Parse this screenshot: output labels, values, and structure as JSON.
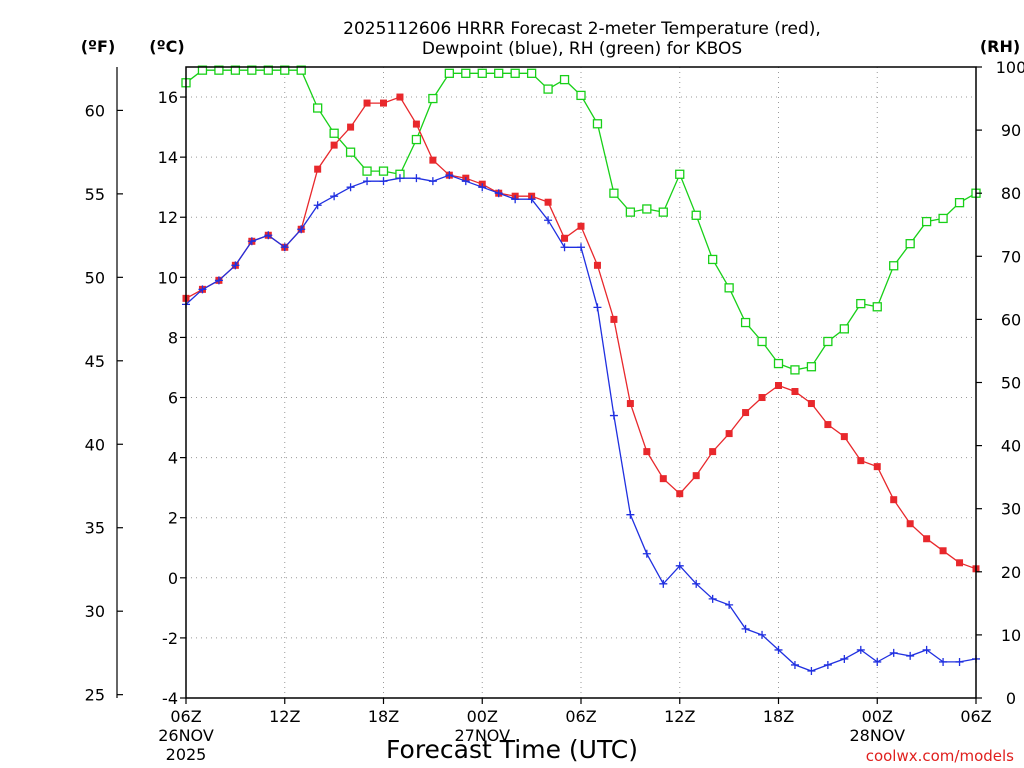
{
  "chart_data": {
    "type": "line",
    "title_line1": "2025112606 HRRR Forecast 2-meter Temperature (red),",
    "title_line2": "Dewpoint (blue), RH (green) for KBOS",
    "xlabel": "Forecast Time (UTC)",
    "credit": "coolwx.com/models",
    "unit_f": "(ºF)",
    "unit_c": "(ºC)",
    "unit_rh": "(RH)",
    "x_range_hours": [
      0,
      48
    ],
    "y_celsius_range": [
      -4,
      17
    ],
    "y_fahrenheit_range": [
      24.8,
      62.6
    ],
    "y_rh_range": [
      0,
      100
    ],
    "grid": true,
    "x_ticks": [
      {
        "hour": 0,
        "label": "06Z",
        "sub1": "26NOV",
        "sub2": "2025"
      },
      {
        "hour": 6,
        "label": "12Z",
        "sub1": "",
        "sub2": ""
      },
      {
        "hour": 12,
        "label": "18Z",
        "sub1": "",
        "sub2": ""
      },
      {
        "hour": 18,
        "label": "00Z",
        "sub1": "27NOV",
        "sub2": ""
      },
      {
        "hour": 24,
        "label": "06Z",
        "sub1": "",
        "sub2": ""
      },
      {
        "hour": 30,
        "label": "12Z",
        "sub1": "",
        "sub2": ""
      },
      {
        "hour": 36,
        "label": "18Z",
        "sub1": "",
        "sub2": ""
      },
      {
        "hour": 42,
        "label": "00Z",
        "sub1": "28NOV",
        "sub2": ""
      },
      {
        "hour": 48,
        "label": "06Z",
        "sub1": "",
        "sub2": ""
      }
    ],
    "celsius_ticks": [
      {
        "v": -4,
        "label": "-4"
      },
      {
        "v": -2,
        "label": "-2"
      },
      {
        "v": 0,
        "label": "0"
      },
      {
        "v": 2,
        "label": "2"
      },
      {
        "v": 4,
        "label": "4"
      },
      {
        "v": 6,
        "label": "6"
      },
      {
        "v": 8,
        "label": "8"
      },
      {
        "v": 10,
        "label": "10"
      },
      {
        "v": 12,
        "label": "12"
      },
      {
        "v": 14,
        "label": "14"
      },
      {
        "v": 16,
        "label": "16"
      }
    ],
    "fahrenheit_ticks": [
      {
        "v": 25,
        "label": "25"
      },
      {
        "v": 30,
        "label": "30"
      },
      {
        "v": 35,
        "label": "35"
      },
      {
        "v": 40,
        "label": "40"
      },
      {
        "v": 45,
        "label": "45"
      },
      {
        "v": 50,
        "label": "50"
      },
      {
        "v": 55,
        "label": "55"
      },
      {
        "v": 60,
        "label": "60"
      }
    ],
    "rh_ticks": [
      {
        "v": 0,
        "label": "0"
      },
      {
        "v": 10,
        "label": "10"
      },
      {
        "v": 20,
        "label": "20"
      },
      {
        "v": 30,
        "label": "30"
      },
      {
        "v": 40,
        "label": "40"
      },
      {
        "v": 50,
        "label": "50"
      },
      {
        "v": 60,
        "label": "60"
      },
      {
        "v": 70,
        "label": "70"
      },
      {
        "v": 80,
        "label": "80"
      },
      {
        "v": 90,
        "label": "90"
      },
      {
        "v": 100,
        "label": "100"
      }
    ],
    "series": [
      {
        "name": "Temperature",
        "unit": "C",
        "axis": "celsius",
        "color": "#e8282c",
        "marker": "filled-square",
        "x": [
          0,
          1,
          2,
          3,
          4,
          5,
          6,
          7,
          8,
          9,
          10,
          11,
          12,
          13,
          14,
          15,
          16,
          17,
          18,
          19,
          20,
          21,
          22,
          23,
          24,
          25,
          26,
          27,
          28,
          29,
          30,
          31,
          32,
          33,
          34,
          35,
          36,
          37,
          38,
          39,
          40,
          41,
          42,
          43,
          44,
          45,
          46,
          47,
          48
        ],
        "values": [
          9.3,
          9.6,
          9.9,
          10.4,
          11.2,
          11.4,
          11.0,
          11.6,
          13.6,
          14.4,
          15.0,
          15.8,
          15.8,
          16.0,
          15.1,
          13.9,
          13.4,
          13.3,
          13.1,
          12.8,
          12.7,
          12.7,
          12.5,
          11.3,
          11.7,
          10.4,
          8.6,
          5.8,
          4.2,
          3.3,
          2.8,
          3.4,
          4.2,
          4.8,
          5.5,
          6.0,
          6.4,
          6.2,
          5.8,
          5.1,
          4.7,
          3.9,
          3.7,
          2.6,
          1.8,
          1.3,
          0.9,
          0.5,
          0.3
        ]
      },
      {
        "name": "Dewpoint",
        "unit": "C",
        "axis": "celsius",
        "color": "#2030e0",
        "marker": "plus",
        "x": [
          0,
          1,
          2,
          3,
          4,
          5,
          6,
          7,
          8,
          9,
          10,
          11,
          12,
          13,
          14,
          15,
          16,
          17,
          18,
          19,
          20,
          21,
          22,
          23,
          24,
          25,
          26,
          27,
          28,
          29,
          30,
          31,
          32,
          33,
          34,
          35,
          36,
          37,
          38,
          39,
          40,
          41,
          42,
          43,
          44,
          45,
          46,
          47,
          48
        ],
        "values": [
          9.1,
          9.6,
          9.9,
          10.4,
          11.2,
          11.4,
          11.0,
          11.6,
          12.4,
          12.7,
          13.0,
          13.2,
          13.2,
          13.3,
          13.3,
          13.2,
          13.4,
          13.2,
          13.0,
          12.8,
          12.6,
          12.6,
          11.9,
          11.0,
          11.0,
          9.0,
          5.4,
          2.1,
          0.8,
          -0.2,
          0.4,
          -0.2,
          -0.7,
          -0.9,
          -1.7,
          -1.9,
          -2.4,
          -2.9,
          -3.1,
          -2.9,
          -2.7,
          -2.4,
          -2.8,
          -2.5,
          -2.6,
          -2.4,
          -2.8,
          -2.8,
          -2.7
        ]
      },
      {
        "name": "RH",
        "unit": "%",
        "axis": "rh",
        "color": "#18d018",
        "marker": "open-square",
        "x": [
          0,
          1,
          2,
          3,
          4,
          5,
          6,
          7,
          8,
          9,
          10,
          11,
          12,
          13,
          14,
          15,
          16,
          17,
          18,
          19,
          20,
          21,
          22,
          23,
          24,
          25,
          26,
          27,
          28,
          29,
          30,
          31,
          32,
          33,
          34,
          35,
          36,
          37,
          38,
          39,
          40,
          41,
          42,
          43,
          44,
          45,
          46,
          47,
          48
        ],
        "values": [
          97.5,
          99.5,
          99.5,
          99.5,
          99.5,
          99.5,
          99.5,
          99.5,
          93.5,
          89.5,
          86.5,
          83.5,
          83.5,
          83.0,
          88.5,
          95.0,
          99.0,
          99.0,
          99.0,
          99.0,
          99.0,
          99.0,
          96.5,
          98.0,
          95.5,
          91.0,
          80.0,
          77.0,
          77.5,
          77.0,
          83.0,
          76.5,
          69.5,
          65.0,
          59.5,
          56.5,
          53.0,
          52.0,
          52.5,
          56.5,
          58.5,
          62.5,
          62.0,
          68.5,
          72.0,
          75.5,
          76.0,
          78.5,
          80.0
        ]
      }
    ]
  }
}
